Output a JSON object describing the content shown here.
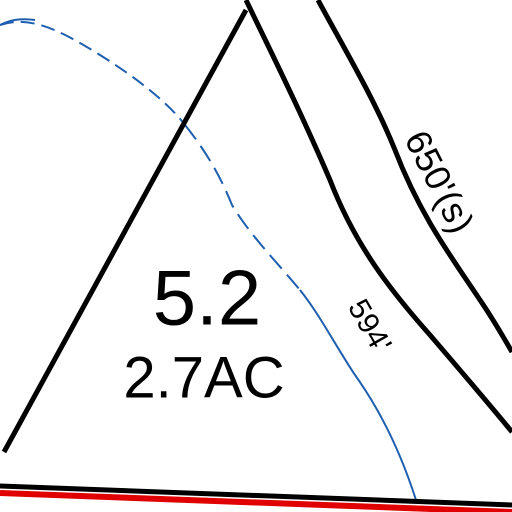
{
  "lot": {
    "number": "5.2",
    "area": "2.7AC"
  },
  "road_labels": {
    "length": "650'(s)",
    "frontage": "594'"
  }
}
